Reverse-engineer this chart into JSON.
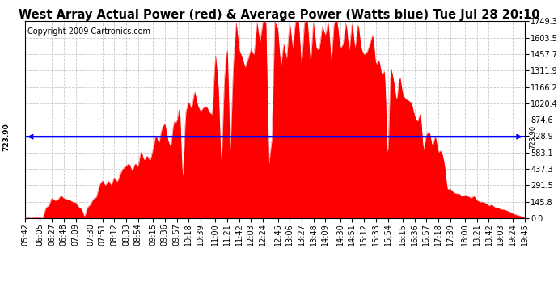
{
  "title": "West Array Actual Power (red) & Average Power (Watts blue) Tue Jul 28 20:10",
  "copyright": "Copyright 2009 Cartronics.com",
  "average_power": 723.9,
  "y_ticks": [
    0.0,
    145.8,
    291.5,
    437.3,
    583.1,
    728.9,
    874.6,
    1020.4,
    1166.2,
    1311.9,
    1457.7,
    1603.5,
    1749.3
  ],
  "ymax": 1749.3,
  "ymin": 0.0,
  "background_color": "#ffffff",
  "plot_bg_color": "#ffffff",
  "grid_color": "#bbbbbb",
  "bar_color": "#ff0000",
  "avg_line_color": "#0000ff",
  "title_fontsize": 10.5,
  "copyright_fontsize": 7,
  "tick_fontsize": 7,
  "x_labels": [
    "05:42",
    "06:05",
    "06:27",
    "06:48",
    "07:09",
    "07:30",
    "07:51",
    "08:12",
    "08:33",
    "08:54",
    "09:15",
    "09:36",
    "09:57",
    "10:18",
    "10:39",
    "11:00",
    "11:21",
    "11:42",
    "12:03",
    "12:24",
    "12:45",
    "13:06",
    "13:27",
    "13:48",
    "14:09",
    "14:30",
    "14:51",
    "15:12",
    "15:33",
    "15:54",
    "16:15",
    "16:36",
    "16:57",
    "17:18",
    "17:39",
    "18:00",
    "18:21",
    "18:42",
    "19:03",
    "19:24",
    "19:45"
  ]
}
